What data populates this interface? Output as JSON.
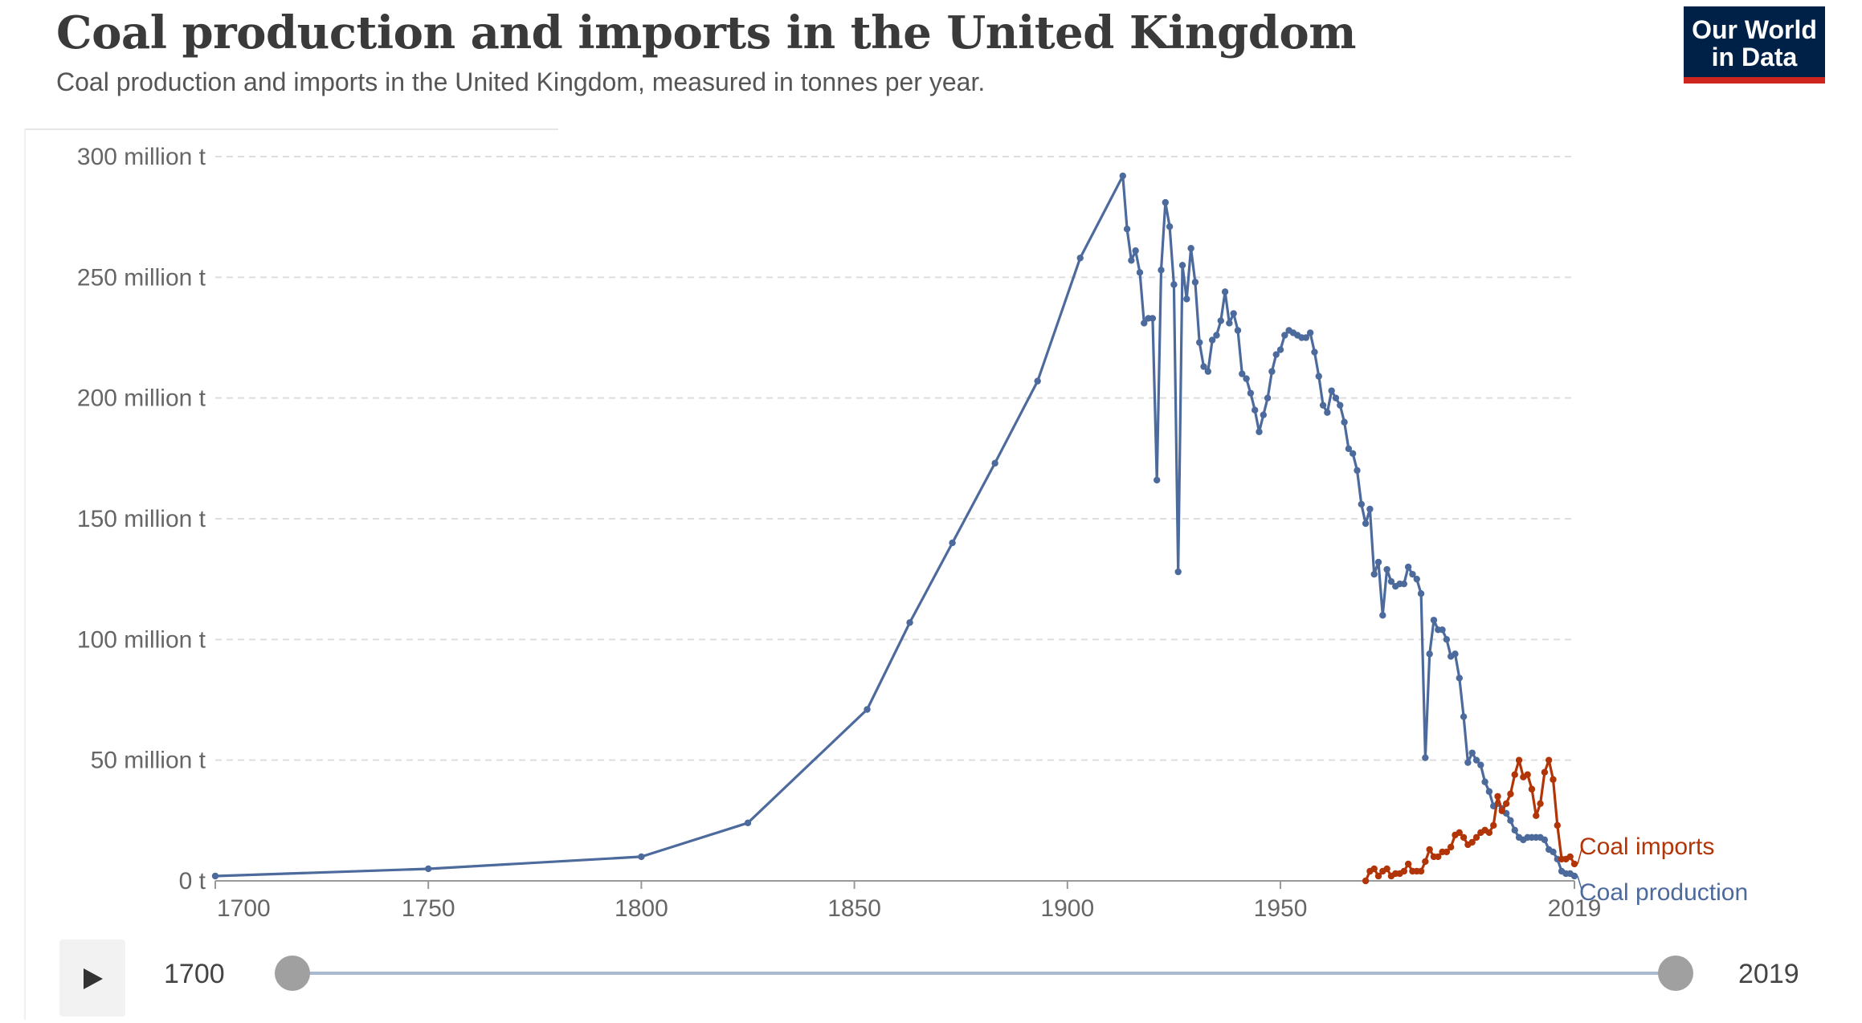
{
  "header": {
    "title": "Coal production and imports in the United Kingdom",
    "subtitle": "Coal production and imports in the United Kingdom, measured in tonnes per year.",
    "logo_line1": "Our World",
    "logo_line2": "in Data"
  },
  "timeline": {
    "start_label": "1700",
    "end_label": "2019",
    "play_icon": "play-icon"
  },
  "colors": {
    "production": "#4c6a9c",
    "imports": "#b13507",
    "logo_bg": "#002147",
    "logo_bar": "#ce261e"
  },
  "chart_data": {
    "type": "line",
    "title": "Coal production and imports in the United Kingdom",
    "subtitle": "Coal production and imports in the United Kingdom, measured in tonnes per year.",
    "xlim": [
      1700,
      2019
    ],
    "ylim": [
      0,
      300
    ],
    "grid": "horizontal dashed",
    "y_tick_values": [
      0,
      50,
      100,
      150,
      200,
      250,
      300
    ],
    "y_tick_labels": [
      "0 t",
      "50 million t",
      "100 million t",
      "150 million t",
      "200 million t",
      "250 million t",
      "300 million t"
    ],
    "x_tick_values": [
      1700,
      1750,
      1800,
      1850,
      1900,
      1950,
      2019
    ],
    "x_tick_labels": [
      "1700",
      "1750",
      "1800",
      "1850",
      "1900",
      "1950",
      "2019"
    ],
    "legend": "inline labels at right end of lines",
    "series": [
      {
        "name": "Coal production",
        "color": "#4c6a9c",
        "points": [
          [
            1700,
            2
          ],
          [
            1750,
            5
          ],
          [
            1800,
            10
          ],
          [
            1825,
            24
          ],
          [
            1853,
            71
          ],
          [
            1863,
            107
          ],
          [
            1873,
            140
          ],
          [
            1883,
            173
          ],
          [
            1893,
            207
          ],
          [
            1903,
            258
          ],
          [
            1913,
            292
          ],
          [
            1914,
            270
          ],
          [
            1915,
            257
          ],
          [
            1916,
            261
          ],
          [
            1917,
            252
          ],
          [
            1918,
            231
          ],
          [
            1919,
            233
          ],
          [
            1920,
            233
          ],
          [
            1921,
            166
          ],
          [
            1922,
            253
          ],
          [
            1923,
            281
          ],
          [
            1924,
            271
          ],
          [
            1925,
            247
          ],
          [
            1926,
            128
          ],
          [
            1927,
            255
          ],
          [
            1928,
            241
          ],
          [
            1929,
            262
          ],
          [
            1930,
            248
          ],
          [
            1931,
            223
          ],
          [
            1932,
            213
          ],
          [
            1933,
            211
          ],
          [
            1934,
            224
          ],
          [
            1935,
            226
          ],
          [
            1936,
            232
          ],
          [
            1937,
            244
          ],
          [
            1938,
            231
          ],
          [
            1939,
            235
          ],
          [
            1940,
            228
          ],
          [
            1941,
            210
          ],
          [
            1942,
            208
          ],
          [
            1943,
            202
          ],
          [
            1944,
            195
          ],
          [
            1945,
            186
          ],
          [
            1946,
            193
          ],
          [
            1947,
            200
          ],
          [
            1948,
            211
          ],
          [
            1949,
            218
          ],
          [
            1950,
            220
          ],
          [
            1951,
            226
          ],
          [
            1952,
            228
          ],
          [
            1953,
            227
          ],
          [
            1954,
            226
          ],
          [
            1955,
            225
          ],
          [
            1956,
            225
          ],
          [
            1957,
            227
          ],
          [
            1958,
            219
          ],
          [
            1959,
            209
          ],
          [
            1960,
            197
          ],
          [
            1961,
            194
          ],
          [
            1962,
            203
          ],
          [
            1963,
            200
          ],
          [
            1964,
            197
          ],
          [
            1965,
            190
          ],
          [
            1966,
            179
          ],
          [
            1967,
            177
          ],
          [
            1968,
            170
          ],
          [
            1969,
            156
          ],
          [
            1970,
            148
          ],
          [
            1971,
            154
          ],
          [
            1972,
            127
          ],
          [
            1973,
            132
          ],
          [
            1974,
            110
          ],
          [
            1975,
            129
          ],
          [
            1976,
            124
          ],
          [
            1977,
            122
          ],
          [
            1978,
            123
          ],
          [
            1979,
            123
          ],
          [
            1980,
            130
          ],
          [
            1981,
            127
          ],
          [
            1982,
            125
          ],
          [
            1983,
            119
          ],
          [
            1984,
            51
          ],
          [
            1985,
            94
          ],
          [
            1986,
            108
          ],
          [
            1987,
            104
          ],
          [
            1988,
            104
          ],
          [
            1989,
            100
          ],
          [
            1990,
            93
          ],
          [
            1991,
            94
          ],
          [
            1992,
            84
          ],
          [
            1993,
            68
          ],
          [
            1994,
            49
          ],
          [
            1995,
            53
          ],
          [
            1996,
            50
          ],
          [
            1997,
            48
          ],
          [
            1998,
            41
          ],
          [
            1999,
            37
          ],
          [
            2000,
            31
          ],
          [
            2001,
            32
          ],
          [
            2002,
            30
          ],
          [
            2003,
            28
          ],
          [
            2004,
            25
          ],
          [
            2005,
            21
          ],
          [
            2006,
            18
          ],
          [
            2007,
            17
          ],
          [
            2008,
            18
          ],
          [
            2009,
            18
          ],
          [
            2010,
            18
          ],
          [
            2011,
            18
          ],
          [
            2012,
            17
          ],
          [
            2013,
            13
          ],
          [
            2014,
            12
          ],
          [
            2015,
            9
          ],
          [
            2016,
            4
          ],
          [
            2017,
            3
          ],
          [
            2018,
            3
          ],
          [
            2019,
            2
          ]
        ]
      },
      {
        "name": "Coal imports",
        "color": "#b13507",
        "points": [
          [
            1970,
            0
          ],
          [
            1971,
            4
          ],
          [
            1972,
            5
          ],
          [
            1973,
            2
          ],
          [
            1974,
            4
          ],
          [
            1975,
            5
          ],
          [
            1976,
            2
          ],
          [
            1977,
            3
          ],
          [
            1978,
            3
          ],
          [
            1979,
            4
          ],
          [
            1980,
            7
          ],
          [
            1981,
            4
          ],
          [
            1982,
            4
          ],
          [
            1983,
            4
          ],
          [
            1984,
            8
          ],
          [
            1985,
            13
          ],
          [
            1986,
            10
          ],
          [
            1987,
            10
          ],
          [
            1988,
            12
          ],
          [
            1989,
            12
          ],
          [
            1990,
            14
          ],
          [
            1991,
            19
          ],
          [
            1992,
            20
          ],
          [
            1993,
            18
          ],
          [
            1994,
            15
          ],
          [
            1995,
            16
          ],
          [
            1996,
            18
          ],
          [
            1997,
            20
          ],
          [
            1998,
            21
          ],
          [
            1999,
            20
          ],
          [
            2000,
            23
          ],
          [
            2001,
            35
          ],
          [
            2002,
            29
          ],
          [
            2003,
            32
          ],
          [
            2004,
            36
          ],
          [
            2005,
            44
          ],
          [
            2006,
            50
          ],
          [
            2007,
            43
          ],
          [
            2008,
            44
          ],
          [
            2009,
            38
          ],
          [
            2010,
            27
          ],
          [
            2011,
            32
          ],
          [
            2012,
            45
          ],
          [
            2013,
            50
          ],
          [
            2014,
            42
          ],
          [
            2015,
            23
          ],
          [
            2016,
            9
          ],
          [
            2017,
            9
          ],
          [
            2018,
            10
          ],
          [
            2019,
            7
          ]
        ]
      }
    ]
  }
}
